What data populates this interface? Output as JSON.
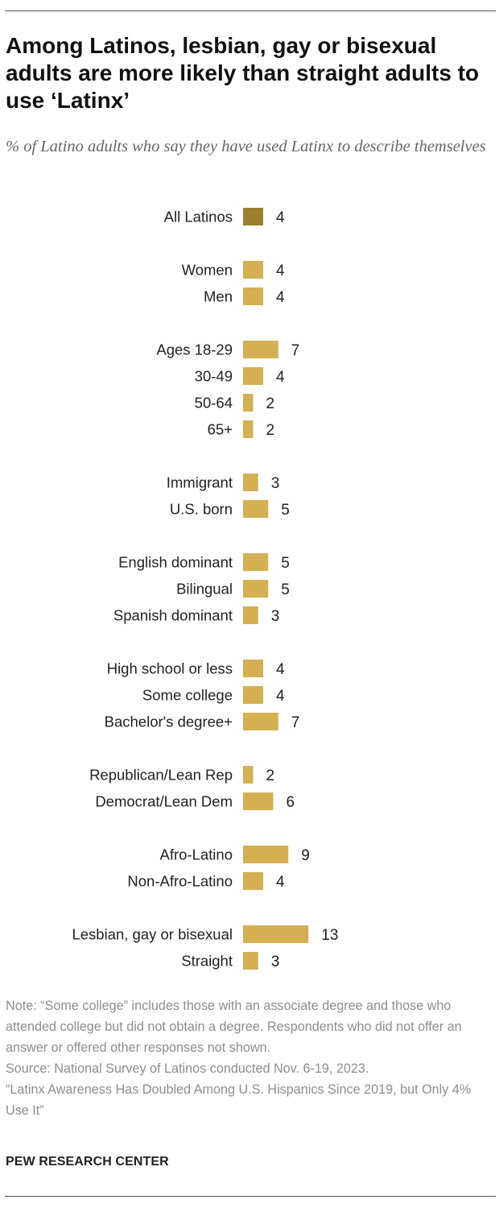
{
  "title": "Among Latinos, lesbian, gay or bisexual adults are more likely than straight adults to use ‘Latinx’",
  "subtitle": "% of Latino adults who say they have used Latinx to describe themselves",
  "colors": {
    "highlight_bar": "#9c7f2f",
    "bar": "#d4b052",
    "text": "#222222",
    "note_text": "#8e8e8e"
  },
  "chart_data": {
    "type": "bar",
    "orientation": "horizontal",
    "unit": "%",
    "groups": [
      {
        "items": [
          {
            "label": "All Latinos",
            "value": 4,
            "highlight": true
          }
        ]
      },
      {
        "items": [
          {
            "label": "Women",
            "value": 4
          },
          {
            "label": "Men",
            "value": 4
          }
        ]
      },
      {
        "items": [
          {
            "label": "Ages 18-29",
            "value": 7
          },
          {
            "label": "30-49",
            "value": 4
          },
          {
            "label": "50-64",
            "value": 2
          },
          {
            "label": "65+",
            "value": 2
          }
        ]
      },
      {
        "items": [
          {
            "label": "Immigrant",
            "value": 3
          },
          {
            "label": "U.S. born",
            "value": 5
          }
        ]
      },
      {
        "items": [
          {
            "label": "English dominant",
            "value": 5
          },
          {
            "label": "Bilingual",
            "value": 5
          },
          {
            "label": "Spanish dominant",
            "value": 3
          }
        ]
      },
      {
        "items": [
          {
            "label": "High school or less",
            "value": 4
          },
          {
            "label": "Some college",
            "value": 4
          },
          {
            "label": "Bachelor's degree+",
            "value": 7
          }
        ]
      },
      {
        "items": [
          {
            "label": "Republican/Lean Rep",
            "value": 2
          },
          {
            "label": "Democrat/Lean Dem",
            "value": 6
          }
        ]
      },
      {
        "items": [
          {
            "label": "Afro-Latino",
            "value": 9
          },
          {
            "label": "Non-Afro-Latino",
            "value": 4
          }
        ]
      },
      {
        "items": [
          {
            "label": "Lesbian, gay or bisexual",
            "value": 13
          },
          {
            "label": "Straight",
            "value": 3
          }
        ]
      }
    ]
  },
  "notes": {
    "note": "Note: “Some college” includes those with an associate degree and those who attended college but did not obtain a degree. Respondents who did not offer an answer or offered other responses not shown.",
    "source": "Source: National Survey of Latinos conducted Nov. 6-19, 2023.",
    "report": "“Latinx Awareness Has Doubled Among U.S. Hispanics Since 2019, but Only 4% Use It”"
  },
  "brand": "PEW RESEARCH CENTER"
}
